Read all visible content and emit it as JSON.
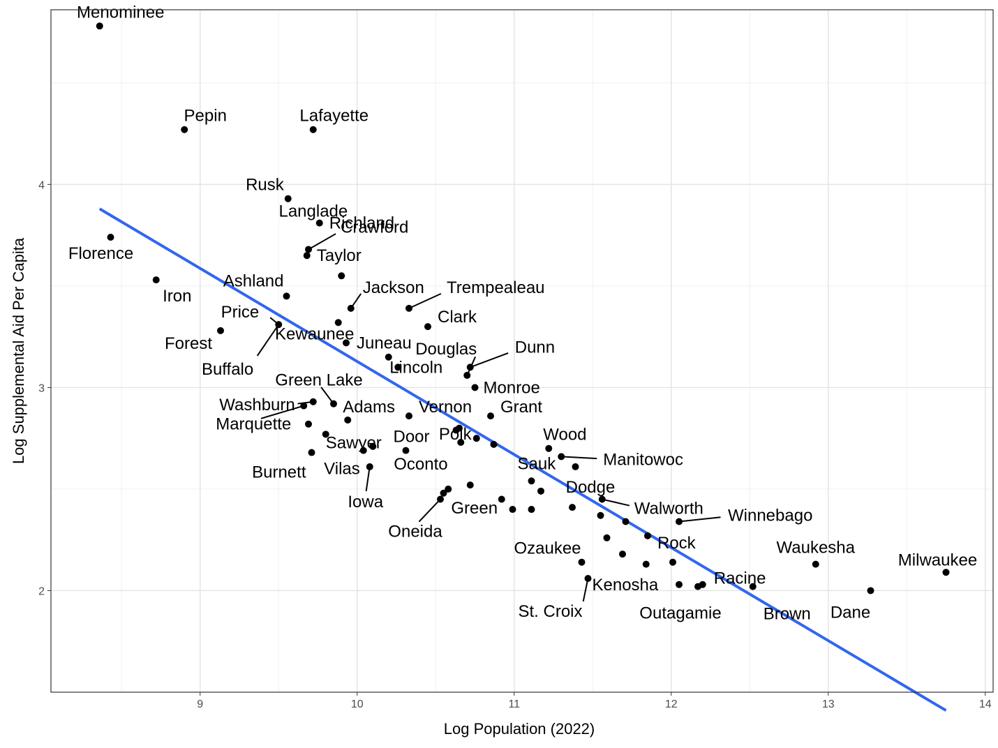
{
  "chart_data": {
    "type": "scatter",
    "title": "",
    "xlabel": "Log Population (2022)",
    "ylabel": "Log Supplemental Aid Per Capita",
    "xlim": [
      8.05,
      14.05
    ],
    "ylim": [
      1.5,
      4.86
    ],
    "x_ticks": [
      "9",
      "10",
      "11",
      "12",
      "13",
      "14"
    ],
    "y_ticks": [
      "2",
      "3",
      "4"
    ],
    "grid": true,
    "legend": "none",
    "trend_line": {
      "type": "linear",
      "x": [
        8.36,
        13.75
      ],
      "y": [
        3.88,
        1.41
      ],
      "color": "#3366ee"
    },
    "labels": [
      "Menominee",
      "Pepin",
      "Lafayette",
      "Rusk",
      "Richland",
      "Crawford",
      "Taylor",
      "Florence",
      "Iron",
      "Ashland",
      "Price",
      "Langlade",
      "Jackson",
      "Trempealeau",
      "Forest",
      "Kewaunee",
      "Juneau",
      "Clark",
      "Douglas",
      "Dunn",
      "Buffalo",
      "Green Lake",
      "Lincoln",
      "Monroe",
      "Washburn",
      "Adams",
      "Vernon",
      "Grant",
      "Marquette",
      "Sawyer",
      "Door",
      "Wood",
      "Manitowoc",
      "Burnett",
      "Vilas",
      "Oconto",
      "Polk",
      "Sauk",
      "Dodge",
      "Iowa",
      "Walworth",
      "Winnebago",
      "Green",
      "Oneida",
      "Rock",
      "Ozaukee",
      "Waukesha",
      "Milwaukee",
      "Racine",
      "Kenosha",
      "St. Croix",
      "Outagamie",
      "Brown",
      "Dane"
    ],
    "points": [
      {
        "x": 8.36,
        "y": 4.78
      },
      {
        "x": 8.9,
        "y": 4.27
      },
      {
        "x": 9.72,
        "y": 4.27
      },
      {
        "x": 9.56,
        "y": 3.93
      },
      {
        "x": 9.76,
        "y": 3.81
      },
      {
        "x": 9.69,
        "y": 3.68
      },
      {
        "x": 9.68,
        "y": 3.65
      },
      {
        "x": 8.43,
        "y": 3.74
      },
      {
        "x": 8.72,
        "y": 3.53
      },
      {
        "x": 9.55,
        "y": 3.45
      },
      {
        "x": 9.5,
        "y": 3.31
      },
      {
        "x": 9.9,
        "y": 3.55
      },
      {
        "x": 9.96,
        "y": 3.39
      },
      {
        "x": 10.33,
        "y": 3.39
      },
      {
        "x": 9.13,
        "y": 3.28
      },
      {
        "x": 9.88,
        "y": 3.32
      },
      {
        "x": 9.93,
        "y": 3.22
      },
      {
        "x": 10.45,
        "y": 3.3
      },
      {
        "x": 10.2,
        "y": 3.15
      },
      {
        "x": 10.26,
        "y": 3.1
      },
      {
        "x": 10.7,
        "y": 3.06
      },
      {
        "x": 10.72,
        "y": 3.1
      },
      {
        "x": 10.75,
        "y": 3.0
      },
      {
        "x": 9.72,
        "y": 2.93
      },
      {
        "x": 9.66,
        "y": 2.91
      },
      {
        "x": 9.85,
        "y": 2.92
      },
      {
        "x": 10.33,
        "y": 2.86
      },
      {
        "x": 10.85,
        "y": 2.86
      },
      {
        "x": 9.94,
        "y": 2.84
      },
      {
        "x": 9.69,
        "y": 2.82
      },
      {
        "x": 9.8,
        "y": 2.77
      },
      {
        "x": 10.63,
        "y": 2.79
      },
      {
        "x": 10.65,
        "y": 2.8
      },
      {
        "x": 10.76,
        "y": 2.75
      },
      {
        "x": 10.66,
        "y": 2.73
      },
      {
        "x": 10.87,
        "y": 2.72
      },
      {
        "x": 10.31,
        "y": 2.69
      },
      {
        "x": 10.04,
        "y": 2.69
      },
      {
        "x": 10.1,
        "y": 2.71
      },
      {
        "x": 9.71,
        "y": 2.68
      },
      {
        "x": 11.22,
        "y": 2.7
      },
      {
        "x": 11.3,
        "y": 2.66
      },
      {
        "x": 11.39,
        "y": 2.61
      },
      {
        "x": 10.08,
        "y": 2.61
      },
      {
        "x": 10.72,
        "y": 2.52
      },
      {
        "x": 10.58,
        "y": 2.5
      },
      {
        "x": 10.55,
        "y": 2.48
      },
      {
        "x": 10.53,
        "y": 2.45
      },
      {
        "x": 11.11,
        "y": 2.54
      },
      {
        "x": 11.17,
        "y": 2.49
      },
      {
        "x": 10.92,
        "y": 2.45
      },
      {
        "x": 11.56,
        "y": 2.45
      },
      {
        "x": 10.99,
        "y": 2.4
      },
      {
        "x": 11.11,
        "y": 2.4
      },
      {
        "x": 11.37,
        "y": 2.41
      },
      {
        "x": 11.55,
        "y": 2.37
      },
      {
        "x": 11.71,
        "y": 2.34
      },
      {
        "x": 12.05,
        "y": 2.34
      },
      {
        "x": 11.85,
        "y": 2.27
      },
      {
        "x": 11.59,
        "y": 2.26
      },
      {
        "x": 11.69,
        "y": 2.18
      },
      {
        "x": 11.43,
        "y": 2.14
      },
      {
        "x": 11.84,
        "y": 2.13
      },
      {
        "x": 12.01,
        "y": 2.14
      },
      {
        "x": 12.92,
        "y": 2.13
      },
      {
        "x": 13.75,
        "y": 2.09
      },
      {
        "x": 11.47,
        "y": 2.06
      },
      {
        "x": 12.05,
        "y": 2.03
      },
      {
        "x": 12.17,
        "y": 2.02
      },
      {
        "x": 12.2,
        "y": 2.03
      },
      {
        "x": 12.52,
        "y": 2.02
      },
      {
        "x": 13.27,
        "y": 2.0
      }
    ],
    "annotations": [
      {
        "text": "Menominee",
        "x": 8.36,
        "y": 4.78
      },
      {
        "text": "Pepin",
        "x": 8.9,
        "y": 4.27
      },
      {
        "text": "Lafayette",
        "x": 9.72,
        "y": 4.27
      },
      {
        "text": "Rusk",
        "x": 9.56,
        "y": 3.93
      },
      {
        "text": "Richland",
        "x": 9.76,
        "y": 3.81
      },
      {
        "text": "Crawford",
        "x": 9.69,
        "y": 3.68
      },
      {
        "text": "Taylor",
        "x": 9.68,
        "y": 3.65
      },
      {
        "text": "Florence",
        "x": 8.43,
        "y": 3.74
      },
      {
        "text": "Iron",
        "x": 8.72,
        "y": 3.53
      },
      {
        "text": "Ashland",
        "x": 9.55,
        "y": 3.45
      },
      {
        "text": "Price",
        "x": 9.5,
        "y": 3.31
      },
      {
        "text": "Langlade",
        "x": 9.9,
        "y": 3.55
      },
      {
        "text": "Jackson",
        "x": 9.96,
        "y": 3.39
      },
      {
        "text": "Trempealeau",
        "x": 10.33,
        "y": 3.39
      },
      {
        "text": "Forest",
        "x": 9.13,
        "y": 3.28
      },
      {
        "text": "Kewaunee",
        "x": 9.88,
        "y": 3.32
      },
      {
        "text": "Juneau",
        "x": 9.93,
        "y": 3.22
      },
      {
        "text": "Clark",
        "x": 10.45,
        "y": 3.3
      },
      {
        "text": "Douglas",
        "x": 10.7,
        "y": 3.06
      },
      {
        "text": "Dunn",
        "x": 10.72,
        "y": 3.1
      },
      {
        "text": "Buffalo",
        "x": 9.5,
        "y": 3.31
      },
      {
        "text": "Green Lake",
        "x": 9.85,
        "y": 2.92
      },
      {
        "text": "Lincoln",
        "x": 10.26,
        "y": 3.1
      },
      {
        "text": "Monroe",
        "x": 10.75,
        "y": 3.0
      },
      {
        "text": "Washburn",
        "x": 9.72,
        "y": 2.93
      },
      {
        "text": "Adams",
        "x": 9.94,
        "y": 2.84
      },
      {
        "text": "Vernon",
        "x": 10.33,
        "y": 2.86
      },
      {
        "text": "Grant",
        "x": 10.85,
        "y": 2.86
      },
      {
        "text": "Marquette",
        "x": 9.66,
        "y": 2.91
      },
      {
        "text": "Sawyer",
        "x": 9.8,
        "y": 2.77
      },
      {
        "text": "Door",
        "x": 10.31,
        "y": 2.69
      },
      {
        "text": "Wood",
        "x": 11.22,
        "y": 2.7
      },
      {
        "text": "Manitowoc",
        "x": 11.3,
        "y": 2.66
      },
      {
        "text": "Burnett",
        "x": 9.71,
        "y": 2.68
      },
      {
        "text": "Vilas",
        "x": 10.04,
        "y": 2.69
      },
      {
        "text": "Oconto",
        "x": 10.1,
        "y": 2.71
      },
      {
        "text": "Polk",
        "x": 10.66,
        "y": 2.73
      },
      {
        "text": "Sauk",
        "x": 11.11,
        "y": 2.54
      },
      {
        "text": "Dodge",
        "x": 11.37,
        "y": 2.41
      },
      {
        "text": "Iowa",
        "x": 10.08,
        "y": 2.61
      },
      {
        "text": "Walworth",
        "x": 11.56,
        "y": 2.45
      },
      {
        "text": "Winnebago",
        "x": 12.05,
        "y": 2.34
      },
      {
        "text": "Green",
        "x": 10.72,
        "y": 2.52
      },
      {
        "text": "Oneida",
        "x": 10.53,
        "y": 2.45
      },
      {
        "text": "Rock",
        "x": 11.85,
        "y": 2.27
      },
      {
        "text": "Ozaukee",
        "x": 11.43,
        "y": 2.14
      },
      {
        "text": "Waukesha",
        "x": 12.92,
        "y": 2.13
      },
      {
        "text": "Milwaukee",
        "x": 13.75,
        "y": 2.09
      },
      {
        "text": "Racine",
        "x": 12.2,
        "y": 2.03
      },
      {
        "text": "Kenosha",
        "x": 11.47,
        "y": 2.06
      },
      {
        "text": "St. Croix",
        "x": 11.47,
        "y": 2.06
      },
      {
        "text": "Outagamie",
        "x": 12.05,
        "y": 2.03
      },
      {
        "text": "Brown",
        "x": 12.52,
        "y": 2.02
      },
      {
        "text": "Dane",
        "x": 13.27,
        "y": 2.0
      }
    ]
  }
}
